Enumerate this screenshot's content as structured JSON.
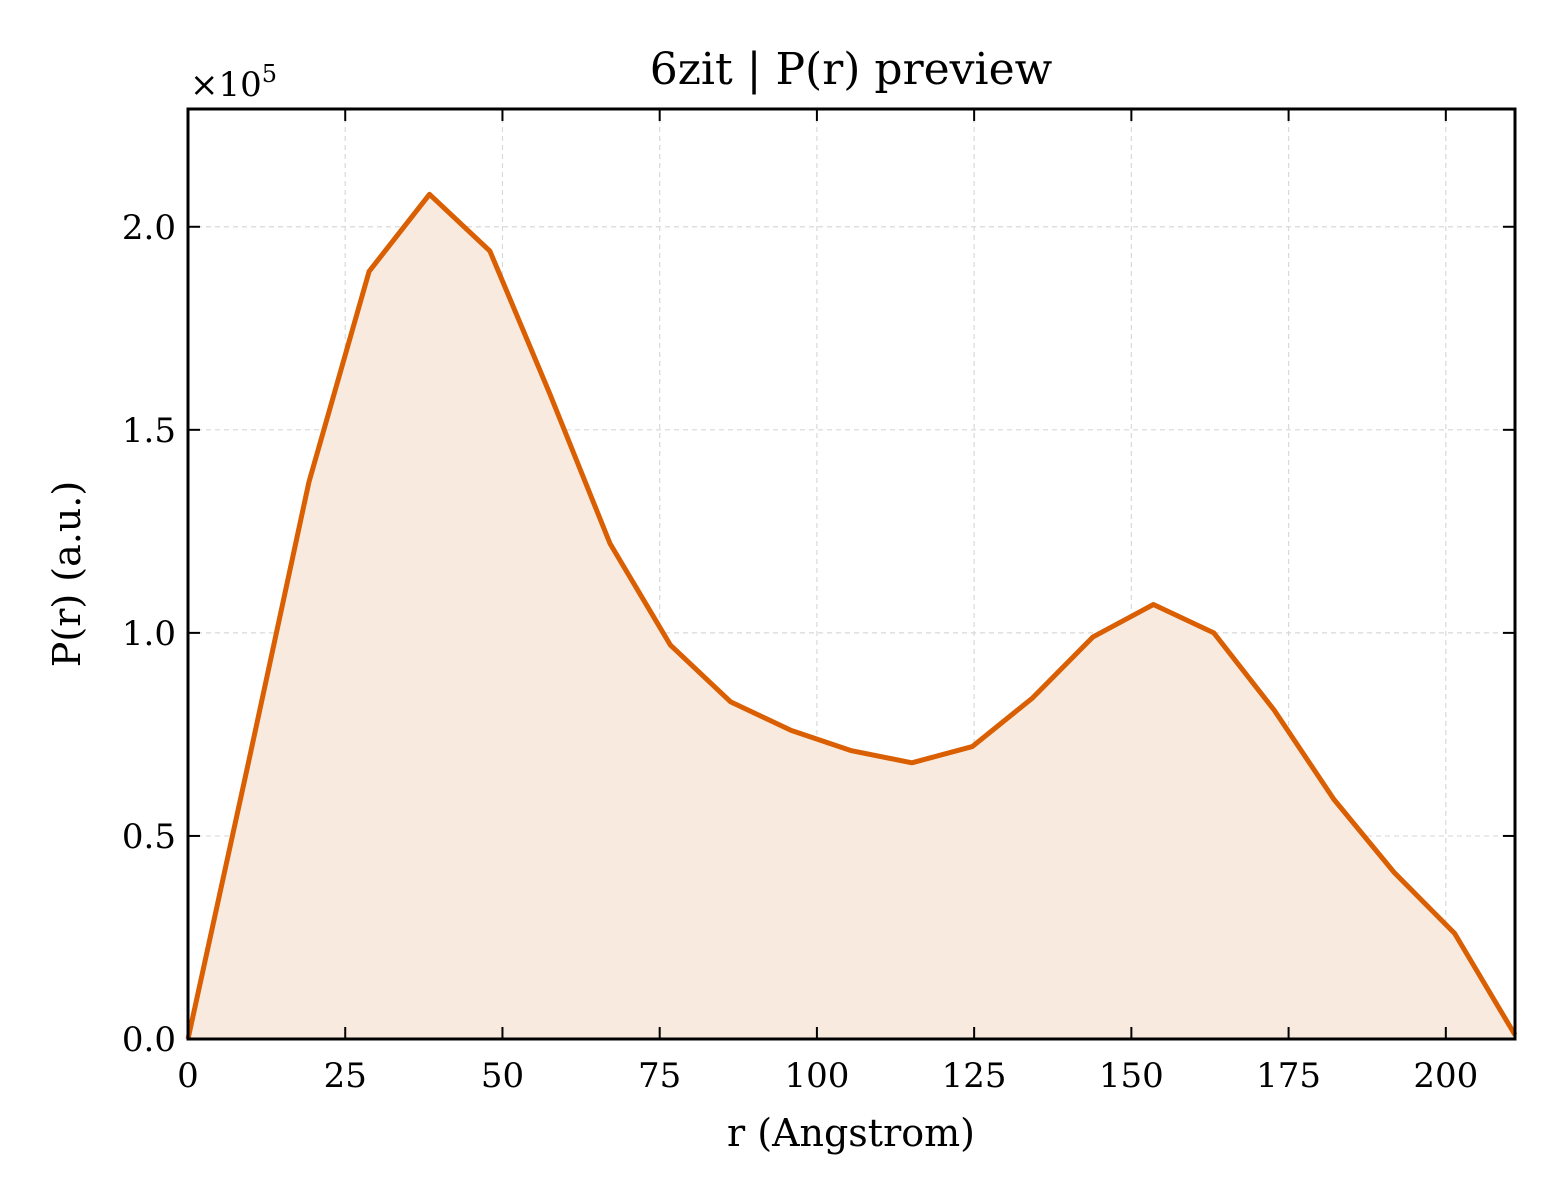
{
  "chart_data": {
    "type": "area",
    "title": "6zit | P(r) preview",
    "xlabel": "r (Angstrom)",
    "ylabel": "P(r) (a.u.)",
    "y_multiplier_base": "×10",
    "y_multiplier_exp": "5",
    "xlim": [
      0,
      211
    ],
    "ylim": [
      0,
      2.29
    ],
    "xticks": [
      0,
      25,
      50,
      75,
      100,
      125,
      150,
      175,
      200
    ],
    "xtick_labels": [
      "0",
      "25",
      "50",
      "75",
      "100",
      "125",
      "150",
      "175",
      "200"
    ],
    "yticks": [
      0,
      0.5,
      1.0,
      1.5,
      2.0
    ],
    "ytick_labels": [
      "0.0",
      "0.5",
      "1.0",
      "1.5",
      "2.0"
    ],
    "grid": true,
    "line_color": "#d95f02",
    "fill_color": "#f9eadf",
    "series": [
      {
        "x": [
          0,
          9.6,
          19.2,
          28.8,
          38.4,
          48.0,
          57.5,
          67.1,
          76.7,
          86.3,
          95.9,
          105.5,
          115.1,
          124.7,
          134.3,
          143.9,
          153.5,
          163.1,
          172.7,
          182.2,
          191.8,
          201.4,
          211.0
        ],
        "y": [
          0.0,
          0.68,
          1.37,
          1.89,
          2.08,
          1.94,
          1.59,
          1.22,
          0.97,
          0.83,
          0.76,
          0.71,
          0.68,
          0.72,
          0.84,
          0.99,
          1.07,
          1.0,
          0.81,
          0.59,
          0.41,
          0.26,
          0.01
        ]
      }
    ]
  }
}
